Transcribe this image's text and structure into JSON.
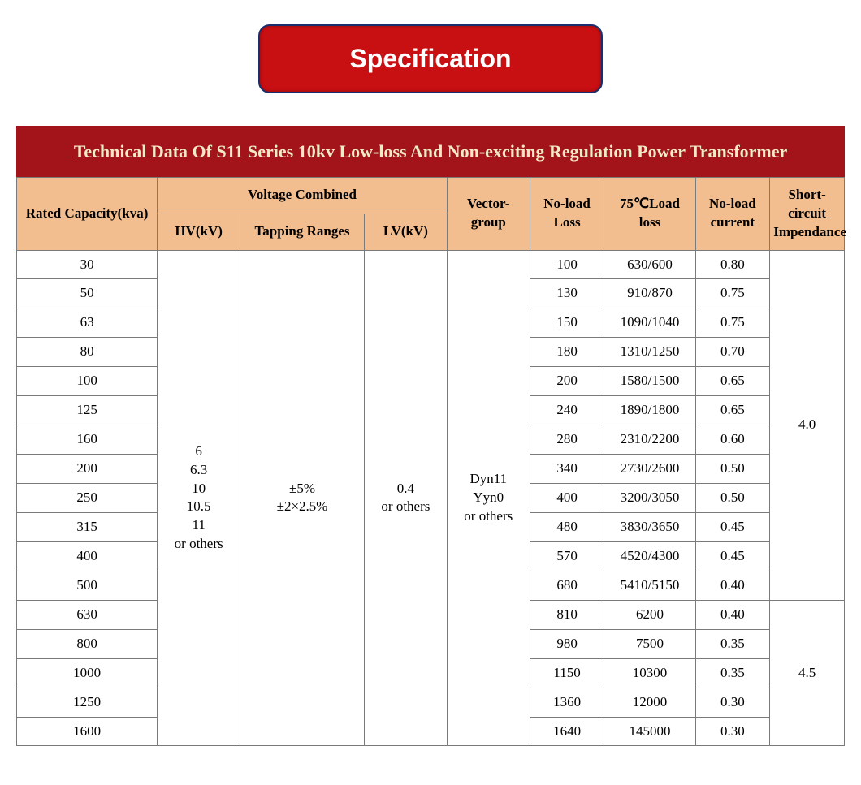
{
  "badge": "Specification",
  "table": {
    "title": "Technical Data Of S11 Series 10kv Low-loss And Non-exciting Regulation Power Transformer",
    "columns": {
      "rated_capacity": "Rated Capacity(kva)",
      "voltage_combined": "Voltage Combined",
      "hv": "HV(kV)",
      "tapping": "Tapping Ranges",
      "lv": "LV(kV)",
      "vector": "Vector-\ngroup",
      "noload_loss": "No-load\nLoss",
      "load_loss": "75℃Load\nloss",
      "noload_current": "No-load\ncurrent",
      "impedance": "Short-circuit\nImpendance"
    },
    "shared": {
      "hv": "6\n6.3\n10\n10.5\n11\nor others",
      "tapping": "±5%\n±2×2.5%",
      "lv": "0.4\nor others",
      "vector": "Dyn11\nYyn0\nor others",
      "impedance_a": "4.0",
      "impedance_b": "4.5"
    },
    "rows": [
      {
        "cap": "30",
        "nl": "100",
        "ll": "630/600",
        "nc": "0.80"
      },
      {
        "cap": "50",
        "nl": "130",
        "ll": "910/870",
        "nc": "0.75"
      },
      {
        "cap": "63",
        "nl": "150",
        "ll": "1090/1040",
        "nc": "0.75"
      },
      {
        "cap": "80",
        "nl": "180",
        "ll": "1310/1250",
        "nc": "0.70"
      },
      {
        "cap": "100",
        "nl": "200",
        "ll": "1580/1500",
        "nc": "0.65"
      },
      {
        "cap": "125",
        "nl": "240",
        "ll": "1890/1800",
        "nc": "0.65"
      },
      {
        "cap": "160",
        "nl": "280",
        "ll": "2310/2200",
        "nc": "0.60"
      },
      {
        "cap": "200",
        "nl": "340",
        "ll": "2730/2600",
        "nc": "0.50"
      },
      {
        "cap": "250",
        "nl": "400",
        "ll": "3200/3050",
        "nc": "0.50"
      },
      {
        "cap": "315",
        "nl": "480",
        "ll": "3830/3650",
        "nc": "0.45"
      },
      {
        "cap": "400",
        "nl": "570",
        "ll": "4520/4300",
        "nc": "0.45"
      },
      {
        "cap": "500",
        "nl": "680",
        "ll": "5410/5150",
        "nc": "0.40"
      },
      {
        "cap": "630",
        "nl": "810",
        "ll": "6200",
        "nc": "0.40"
      },
      {
        "cap": "800",
        "nl": "980",
        "ll": "7500",
        "nc": "0.35"
      },
      {
        "cap": "1000",
        "nl": "1150",
        "ll": "10300",
        "nc": "0.35"
      },
      {
        "cap": "1250",
        "nl": "1360",
        "ll": "12000",
        "nc": "0.30"
      },
      {
        "cap": "1600",
        "nl": "1640",
        "ll": "145000",
        "nc": "0.30"
      }
    ],
    "colors": {
      "badge_bg": "#c80f12",
      "badge_border": "#1a2e6e",
      "title_bg": "#a2141a",
      "title_fg": "#f2e9c6",
      "header_bg": "#f2be90",
      "border": "#7a7a7a"
    },
    "col_widths_pct": [
      17,
      10,
      15,
      10,
      10,
      9,
      11,
      9,
      9
    ]
  }
}
